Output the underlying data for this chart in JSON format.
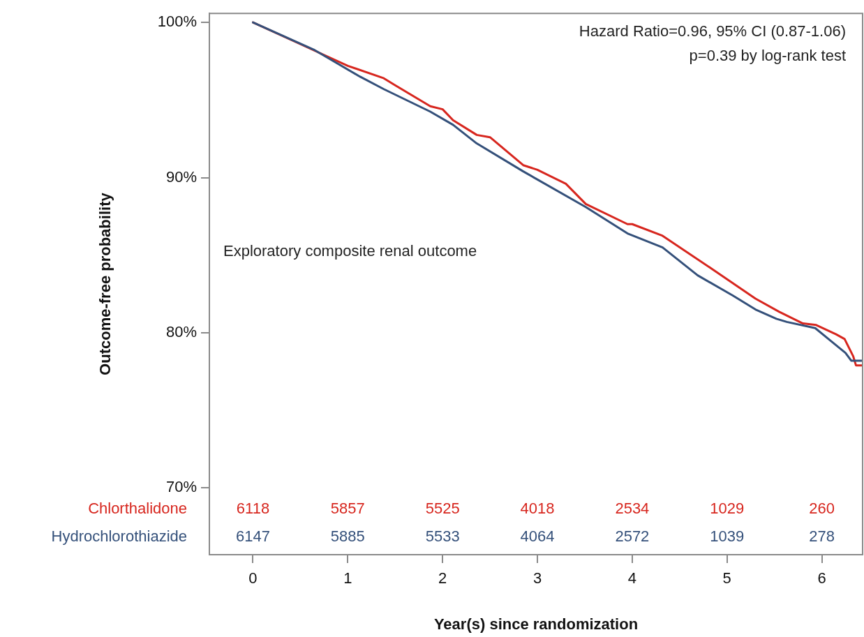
{
  "chart_data": {
    "type": "line",
    "subtitle": "Exploratory composite renal outcome",
    "xlabel": "Year(s) since randomization",
    "ylabel": "Outcome-free probability",
    "xlim": [
      -0.46,
      6.43
    ],
    "xticks": [
      0,
      1,
      2,
      3,
      4,
      5,
      6
    ],
    "ylim": [
      65.7,
      100.58
    ],
    "yticks": [
      {
        "value": 70,
        "label": "70%"
      },
      {
        "value": 80,
        "label": "80%"
      },
      {
        "value": 90,
        "label": "90%"
      },
      {
        "value": 100,
        "label": "100%"
      }
    ],
    "grid": false,
    "legend": false,
    "series": [
      {
        "name": "Chlorthalidone",
        "color": "#d7261e",
        "x": [
          0,
          0.5,
          1,
          1.38,
          1.5,
          1.87,
          2,
          2.11,
          2.36,
          2.5,
          2.85,
          3,
          3.3,
          3.51,
          3.95,
          4,
          4.32,
          4.82,
          5.3,
          5.55,
          5.8,
          5.94,
          6.15,
          6.24,
          6.33,
          6.36,
          6.43
        ],
        "values": [
          100,
          98.6,
          97.2,
          96.4,
          95.95,
          94.6,
          94.4,
          93.7,
          92.75,
          92.6,
          90.8,
          90.5,
          89.6,
          88.3,
          87.0,
          87.0,
          86.25,
          84.2,
          82.2,
          81.35,
          80.6,
          80.5,
          79.9,
          79.6,
          78.5,
          77.9,
          77.9
        ]
      },
      {
        "name": "Hydrochlorothiazide",
        "color": "#34507a",
        "x": [
          0,
          0.64,
          1.13,
          1.38,
          1.87,
          2.11,
          2.36,
          2.85,
          3.51,
          3.95,
          4.32,
          4.69,
          5.06,
          5.3,
          5.52,
          5.63,
          5.93,
          6.07,
          6.25,
          6.31,
          6.43
        ],
        "values": [
          100,
          98.25,
          96.5,
          95.7,
          94.25,
          93.4,
          92.2,
          90.4,
          88.1,
          86.4,
          85.5,
          83.7,
          82.4,
          81.5,
          80.9,
          80.7,
          80.3,
          79.6,
          78.7,
          78.2,
          78.2
        ]
      }
    ],
    "annotations": [
      "Hazard Ratio=0.96, 95% CI (0.87-1.06)",
      "p=0.39 by log-rank test",
      "6118",
      "5857",
      "5525",
      "4018",
      "2534",
      "1029",
      "260",
      "6147",
      "5885",
      "5533",
      "4064",
      "2572",
      "1039",
      "278"
    ]
  }
}
